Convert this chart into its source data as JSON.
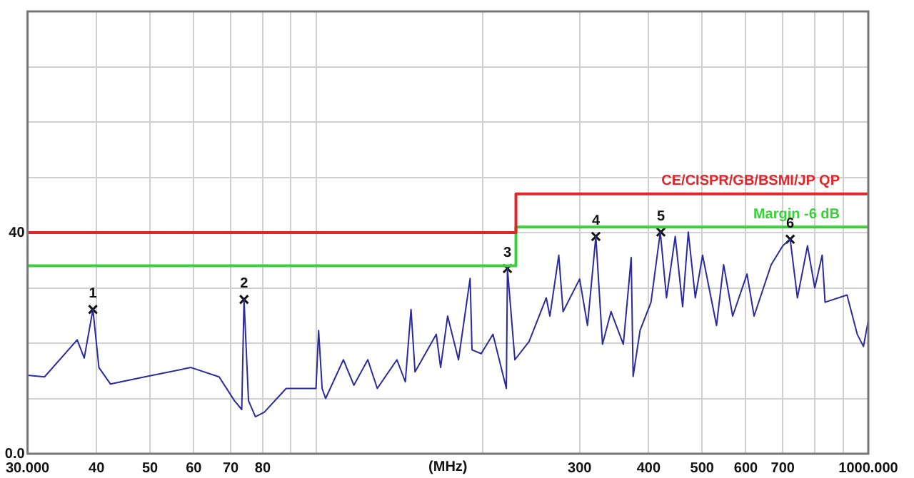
{
  "chart_data": {
    "type": "line",
    "xlabel": "(MHz)",
    "log": "x",
    "grid": true,
    "legend": false,
    "xlim": [
      30,
      1000
    ],
    "ylim": [
      0,
      80
    ],
    "xticks": [
      {
        "value": 30,
        "label": "30.000"
      },
      40,
      50,
      60,
      70,
      80,
      {
        "value": 90,
        "label": null
      },
      {
        "value": 100,
        "label": null
      },
      {
        "value": 200,
        "label": null
      },
      300,
      400,
      500,
      600,
      700,
      {
        "value": 800,
        "label": null
      },
      {
        "value": 900,
        "label": null
      },
      {
        "value": 1000,
        "label": "1000.000"
      }
    ],
    "yticks": [
      {
        "value": 0,
        "label": "0.0"
      },
      {
        "value": 10,
        "label": null
      },
      {
        "value": 20,
        "label": null
      },
      {
        "value": 30,
        "label": null
      },
      40,
      {
        "value": 50,
        "label": null
      },
      {
        "value": 60,
        "label": null
      },
      {
        "value": 70,
        "label": null
      },
      {
        "value": 80,
        "label": null
      }
    ],
    "series": [
      {
        "color": "#2b2b9e",
        "marker": "none",
        "x": [
          30,
          32.2,
          36.9,
          38,
          39.4,
          40.4,
          42.4,
          48.9,
          59.3,
          66.7,
          71.1,
          73.3,
          74,
          75.4,
          77.6,
          80.5,
          88.2,
          99.9,
          101,
          102.5,
          104,
          112,
          117,
          124,
          129,
          140,
          145,
          148.5,
          151,
          165,
          168,
          173,
          181,
          190,
          191.5,
          199,
          209,
          221,
          222,
          229,
          243,
          261,
          265,
          275,
          280,
          300,
          310,
          321,
          330,
          342,
          360,
          372,
          375,
          386,
          404,
          420,
          431,
          447,
          461,
          472,
          486,
          501,
          531,
          547,
          568,
          603,
          621,
          667,
          700,
          722,
          744,
          776,
          800,
          825,
          835,
          915,
          955,
          980,
          1000
        ],
        "values": [
          14.2,
          13.9,
          20.6,
          17.3,
          26.1,
          15.6,
          12.6,
          13.9,
          15.6,
          13.9,
          9.6,
          8,
          27.9,
          9.6,
          6.7,
          7.5,
          11.8,
          11.8,
          22.3,
          11.8,
          10,
          17,
          12.4,
          17,
          11.8,
          17,
          13,
          26.1,
          14.8,
          21.6,
          15.6,
          24.9,
          17,
          31.7,
          18.8,
          18.1,
          21.6,
          11.8,
          33.5,
          17,
          20.3,
          28.2,
          24.9,
          35.9,
          25.7,
          31.6,
          23.2,
          39.3,
          19.8,
          25.7,
          19.8,
          35.5,
          14,
          22.3,
          27.4,
          40.1,
          28.2,
          39.3,
          26.6,
          40.1,
          28.2,
          35.9,
          23.2,
          34.2,
          24.9,
          32.5,
          24.9,
          34.2,
          37.6,
          38.8,
          28.2,
          37.6,
          30,
          35.9,
          27.4,
          28.7,
          21.6,
          19.4,
          24.1
        ]
      },
      {
        "name": "CE/CISPR/GB/BSMI/JP QP",
        "color": "#e0262b",
        "marker": "none",
        "x": [
          30,
          230,
          230,
          1000
        ],
        "values": [
          40,
          40,
          47,
          47
        ]
      },
      {
        "name": "Margin -6 dB",
        "color": "#3ccf3c",
        "marker": "none",
        "x": [
          30,
          230,
          230,
          1000
        ],
        "values": [
          34,
          34,
          41,
          41
        ]
      },
      {
        "type": "scatter",
        "color": "#111111",
        "marker": "cross",
        "x": [
          39.4,
          74,
          222,
          321,
          421,
          722
        ],
        "values": [
          26.1,
          27.9,
          33.5,
          39.3,
          40.1,
          38.8
        ]
      }
    ],
    "annotations": [
      {
        "text": "1",
        "x": 39.4,
        "y": 26.1
      },
      {
        "text": "2",
        "x": 74,
        "y": 27.9
      },
      {
        "text": "3",
        "x": 222,
        "y": 33.5
      },
      {
        "text": "4",
        "x": 321,
        "y": 39.3
      },
      {
        "text": "5",
        "x": 421,
        "y": 40.1
      },
      {
        "text": "6",
        "x": 722,
        "y": 38.8
      }
    ]
  }
}
